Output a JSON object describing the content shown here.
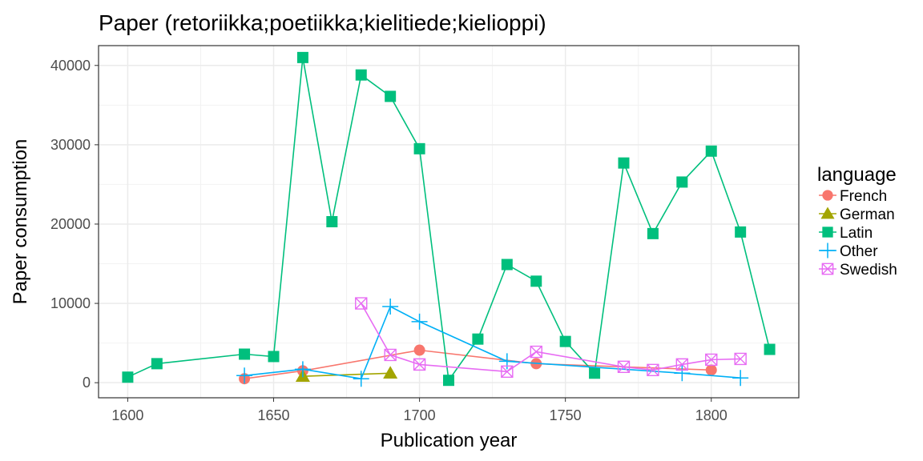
{
  "chart_data": {
    "type": "line",
    "title": "Paper (retoriikka;poetiikka;kielitiede;kielioppi)",
    "xlabel": "Publication year",
    "ylabel": "Paper consumption",
    "xlim": [
      1590,
      1830
    ],
    "ylim": [
      -1900,
      42500
    ],
    "x_ticks": [
      1600,
      1650,
      1700,
      1750,
      1800
    ],
    "y_ticks": [
      0,
      10000,
      20000,
      30000,
      40000
    ],
    "x_tick_labels": [
      "1600",
      "1650",
      "1700",
      "1750",
      "1800"
    ],
    "y_tick_labels": [
      "0",
      "10000",
      "20000",
      "30000",
      "40000"
    ],
    "grid": true,
    "legend_position": "right",
    "legend_title": "language",
    "series": [
      {
        "name": "French",
        "color": "#F8766D",
        "marker": "circle",
        "x": [
          1640,
          1660,
          1700,
          1740,
          1800
        ],
        "y": [
          500,
          1500,
          4100,
          2400,
          1600
        ]
      },
      {
        "name": "German",
        "color": "#A3A500",
        "marker": "triangle",
        "x": [
          1660,
          1690
        ],
        "y": [
          800,
          1200
        ]
      },
      {
        "name": "Latin",
        "color": "#00BF7D",
        "marker": "square",
        "x": [
          1600,
          1610,
          1640,
          1650,
          1660,
          1670,
          1680,
          1690,
          1700,
          1710,
          1720,
          1730,
          1740,
          1750,
          1760,
          1770,
          1780,
          1790,
          1800,
          1810,
          1820
        ],
        "y": [
          700,
          2400,
          3600,
          3300,
          41000,
          20300,
          38800,
          36100,
          29500,
          300,
          5500,
          14900,
          12800,
          5200,
          1200,
          27700,
          18800,
          25300,
          29200,
          19000,
          4200
        ]
      },
      {
        "name": "Other",
        "color": "#00B0F6",
        "marker": "plus",
        "x": [
          1640,
          1660,
          1680,
          1690,
          1700,
          1730,
          1790,
          1810
        ],
        "y": [
          900,
          1700,
          500,
          9600,
          7700,
          2700,
          1200,
          600
        ]
      },
      {
        "name": "Swedish",
        "color": "#E76BF3",
        "marker": "boxcross",
        "x": [
          1680,
          1690,
          1700,
          1730,
          1740,
          1770,
          1780,
          1790,
          1800,
          1810
        ],
        "y": [
          10000,
          3500,
          2300,
          1400,
          3900,
          2000,
          1600,
          2300,
          2900,
          3000
        ]
      }
    ]
  }
}
